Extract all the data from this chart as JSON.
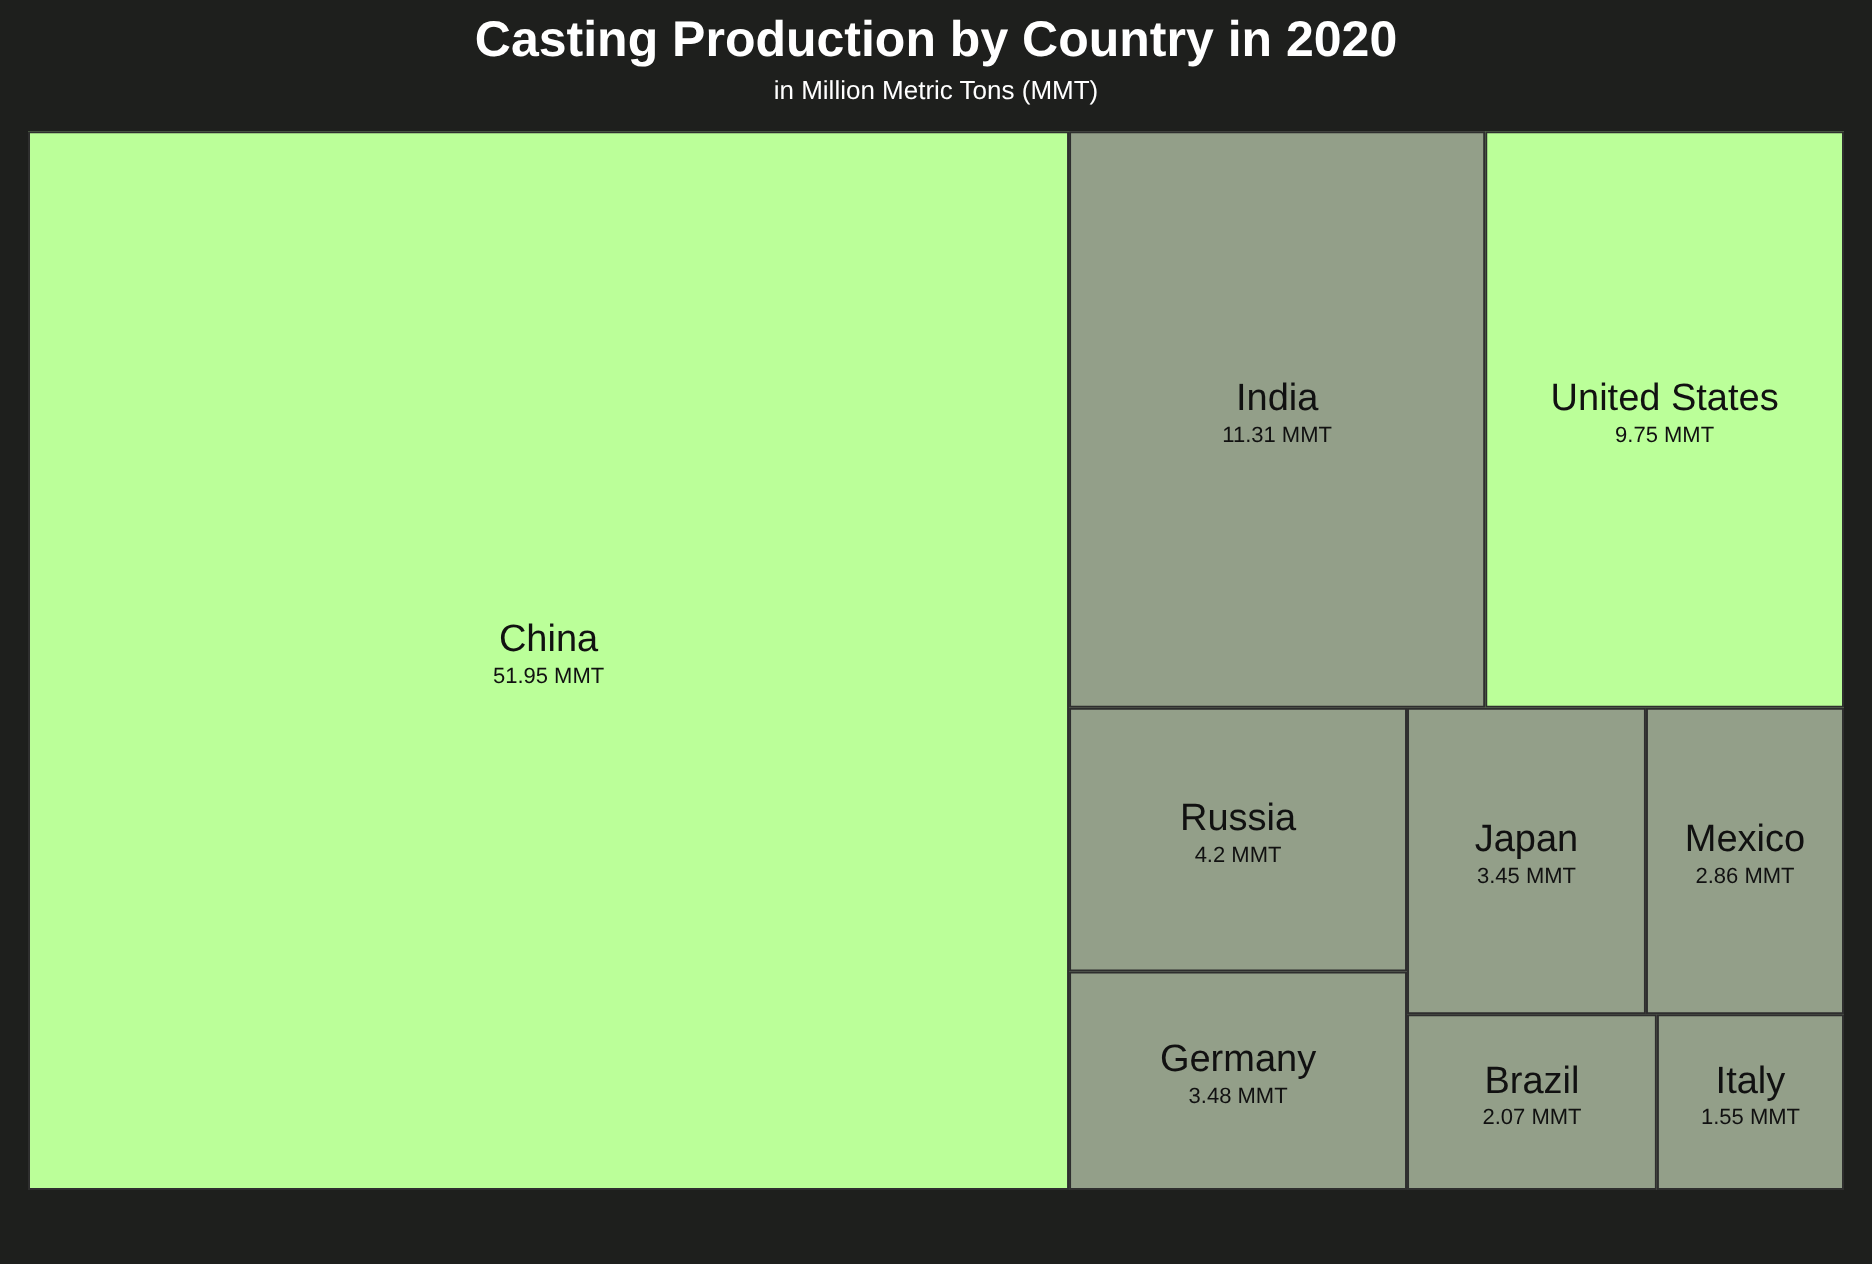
{
  "chart_data": {
    "type": "other",
    "title": "Casting Production by Country in 2020",
    "subtitle": "in Million Metric Tons (MMT)",
    "categories": [
      "China",
      "India",
      "United States",
      "Russia",
      "Germany",
      "Japan",
      "Mexico",
      "Brazil",
      "Italy"
    ],
    "values": [
      51.95,
      11.31,
      9.75,
      4.2,
      3.48,
      3.45,
      2.86,
      2.07,
      1.55
    ],
    "value_labels": [
      "51.95 MMT",
      "11.31 MMT",
      "9.75 MMT",
      "4.2 MMT",
      "3.48 MMT",
      "3.45 MMT",
      "2.86 MMT",
      "2.07 MMT",
      "1.55 MMT"
    ],
    "colors": [
      "#bbff99",
      "#939f89",
      "#bbff99",
      "#939f89",
      "#939f89",
      "#939f89",
      "#939f89",
      "#939f89",
      "#939f89"
    ]
  }
}
